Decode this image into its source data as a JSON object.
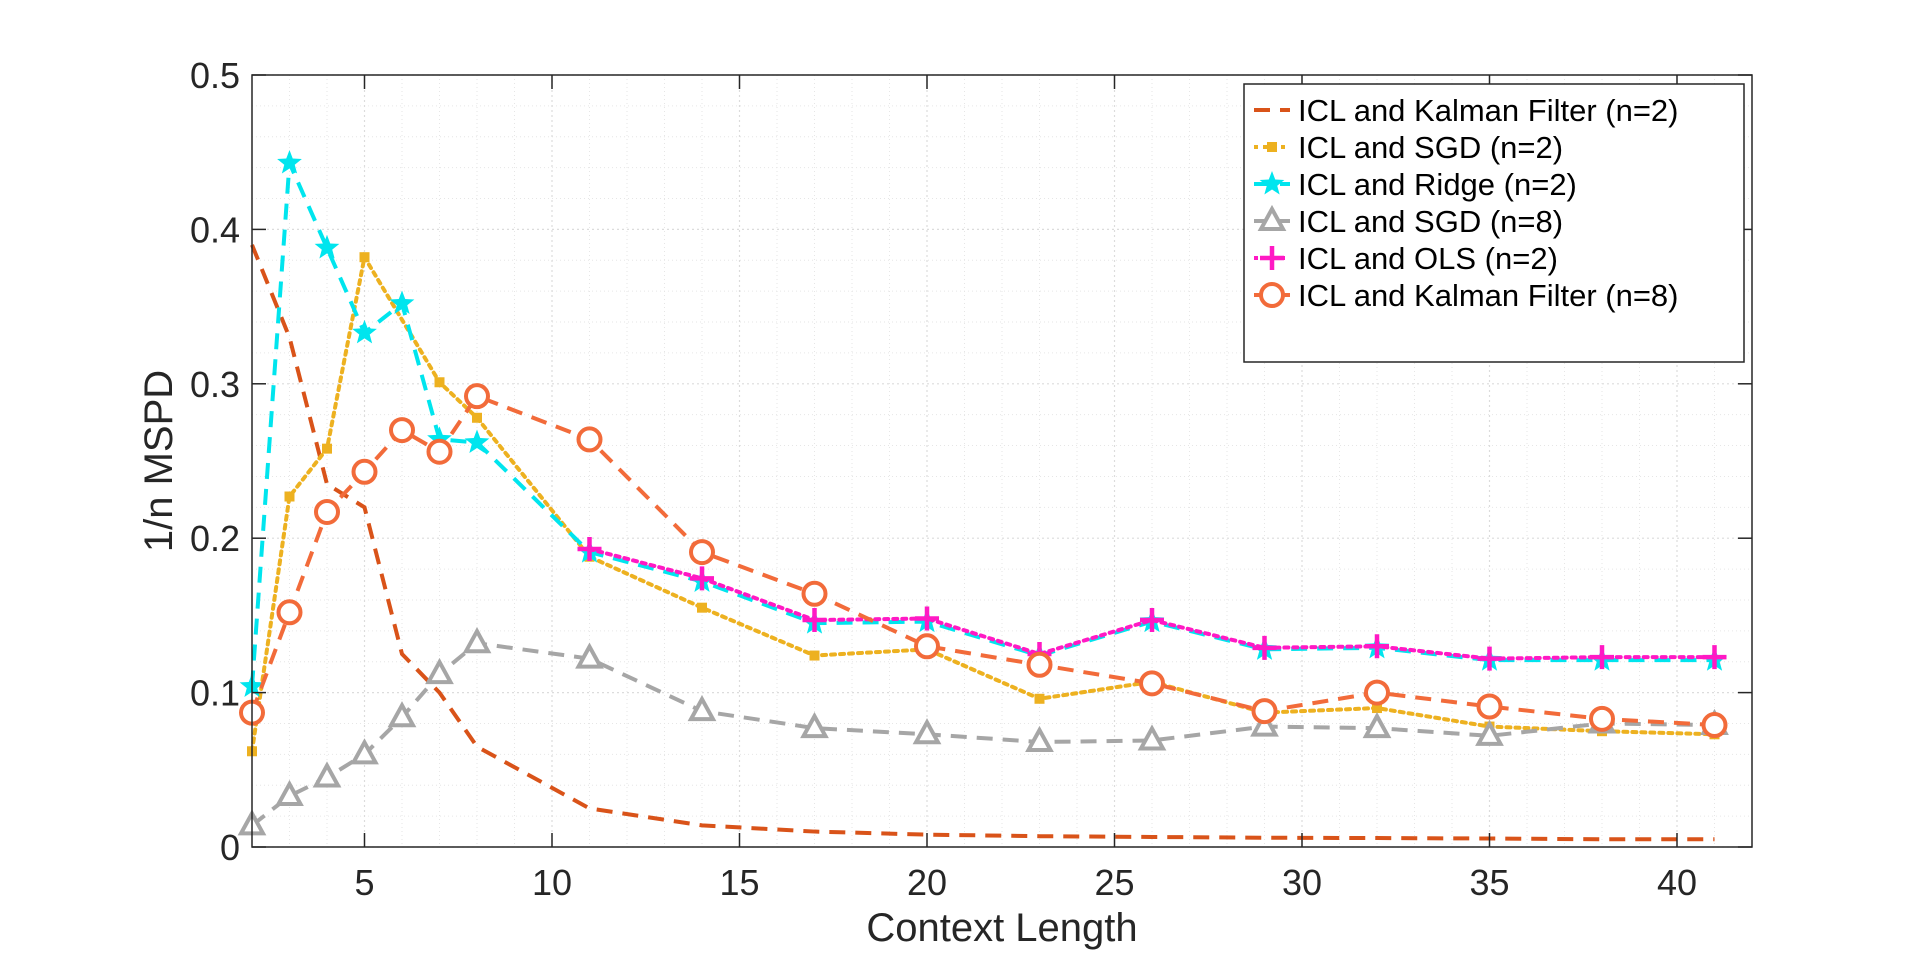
{
  "chart_data": {
    "type": "line",
    "title": "",
    "xlabel": "Context Length",
    "ylabel": "1/n MSPD",
    "xlim": [
      2,
      42
    ],
    "ylim": [
      0,
      0.5
    ],
    "xticks": [
      5,
      10,
      15,
      20,
      25,
      30,
      35,
      40
    ],
    "xtick_labels": [
      "5",
      "10",
      "15",
      "20",
      "25",
      "30",
      "35",
      "40"
    ],
    "yticks": [
      0,
      0.1,
      0.2,
      0.3,
      0.4,
      0.5
    ],
    "ytick_labels": [
      "0",
      "0.1",
      "0.2",
      "0.3",
      "0.4",
      "0.5"
    ],
    "grid": true,
    "minor_grid": true,
    "legend_position": "top-right",
    "series": [
      {
        "name": "ICL and Kalman Filter (n=2)",
        "color": "#D95319",
        "dash": "dashed",
        "marker": "none",
        "x": [
          2,
          3,
          4,
          5,
          6,
          7,
          8,
          11,
          14,
          17,
          20,
          23,
          26,
          29,
          32,
          35,
          38,
          41
        ],
        "y": [
          0.39,
          0.33,
          0.235,
          0.22,
          0.125,
          0.1,
          0.065,
          0.025,
          0.014,
          0.01,
          0.008,
          0.007,
          0.0065,
          0.006,
          0.0058,
          0.0055,
          0.005,
          0.005
        ]
      },
      {
        "name": "ICL and SGD (n=2)",
        "color": "#EDB120",
        "dash": "dotted",
        "marker": "square",
        "x": [
          2,
          3,
          4,
          5,
          7,
          8,
          11,
          14,
          17,
          20,
          23,
          26,
          29,
          32,
          35,
          38,
          41
        ],
        "y": [
          0.062,
          0.227,
          0.258,
          0.382,
          0.301,
          0.278,
          0.188,
          0.155,
          0.124,
          0.128,
          0.096,
          0.107,
          0.087,
          0.09,
          0.078,
          0.075,
          0.073
        ]
      },
      {
        "name": "ICL and Ridge (n=2)",
        "color": "#00E5EE",
        "dash": "dashed",
        "marker": "star",
        "x": [
          2,
          3,
          4,
          5,
          6,
          7,
          8,
          11,
          14,
          17,
          20,
          23,
          26,
          29,
          32,
          35,
          38,
          41
        ],
        "y": [
          0.104,
          0.443,
          0.388,
          0.333,
          0.352,
          0.264,
          0.262,
          0.191,
          0.172,
          0.145,
          0.146,
          0.124,
          0.146,
          0.128,
          0.129,
          0.121,
          0.121,
          0.121
        ]
      },
      {
        "name": "ICL and SGD (n=8)",
        "color": "#A6A6A6",
        "dash": "dashed",
        "marker": "triangle",
        "x": [
          2,
          3,
          4,
          5,
          6,
          7,
          8,
          11,
          14,
          17,
          20,
          23,
          26,
          29,
          32,
          35,
          38,
          41
        ],
        "y": [
          0.014,
          0.033,
          0.045,
          0.06,
          0.084,
          0.112,
          0.132,
          0.122,
          0.088,
          0.077,
          0.073,
          0.068,
          0.069,
          0.078,
          0.077,
          0.072,
          0.08,
          0.079
        ]
      },
      {
        "name": "ICL and OLS (n=2)",
        "color": "#FF19C4",
        "dash": "dotted",
        "marker": "plus",
        "x": [
          11,
          14,
          17,
          20,
          23,
          26,
          29,
          32,
          35,
          38,
          41
        ],
        "y": [
          0.193,
          0.174,
          0.147,
          0.148,
          0.125,
          0.147,
          0.129,
          0.13,
          0.122,
          0.123,
          0.123
        ]
      },
      {
        "name": "ICL and Kalman Filter (n=8)",
        "color": "#F26B3A",
        "dash": "dashed",
        "marker": "circle",
        "x": [
          2,
          3,
          4,
          5,
          6,
          7,
          8,
          11,
          14,
          17,
          20,
          23,
          26,
          29,
          32,
          35,
          38,
          41
        ],
        "y": [
          0.087,
          0.152,
          0.217,
          0.243,
          0.27,
          0.256,
          0.292,
          0.264,
          0.191,
          0.164,
          0.13,
          0.118,
          0.106,
          0.088,
          0.1,
          0.091,
          0.083,
          0.079
        ]
      }
    ]
  }
}
